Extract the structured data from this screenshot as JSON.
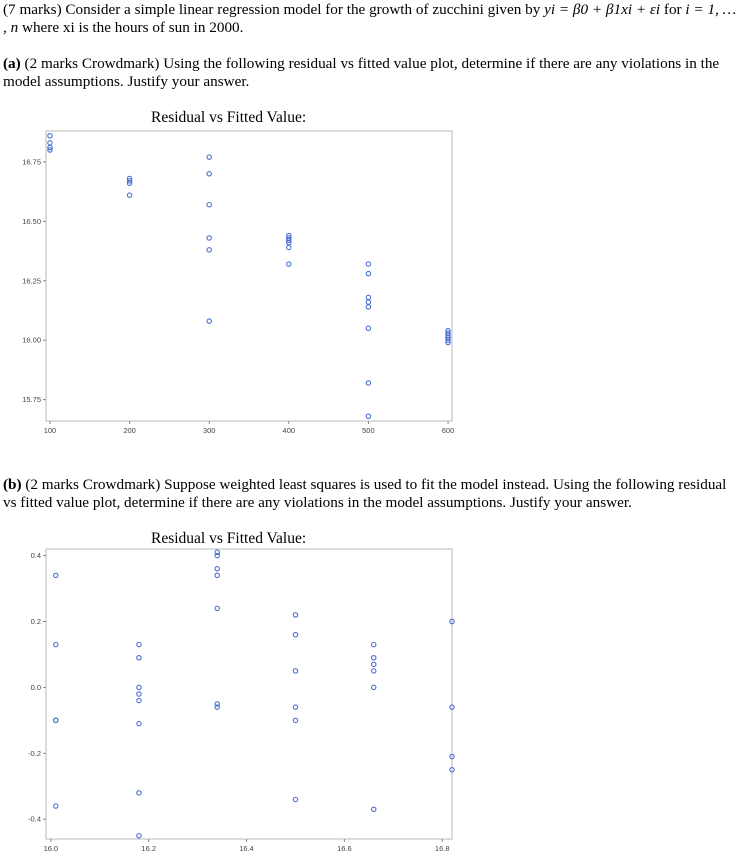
{
  "question": {
    "marks": "(7 marks)",
    "intro": "Consider a simple linear regression model for the growth of zucchini given by",
    "equation": "yi = β0 + β1xi + εi",
    "for": "for",
    "index_range": "i = 1, … , n",
    "x_desc": "where xi is the hours of sun in 2000."
  },
  "part_a": {
    "label": "(a)",
    "text": "(2 marks Crowdmark) Using the following residual vs fitted value plot, determine if there are any violations in the model assumptions. Justify your answer."
  },
  "part_b": {
    "label": "(b)",
    "text": "(2 marks Crowdmark) Suppose weighted least squares is used to fit the model instead. Using the following residual vs fitted value plot, determine if there are any violations in the model assumptions. Justify your answer."
  },
  "chart_data": [
    {
      "type": "scatter",
      "title": "Residual vs Fitted Value:",
      "xlim": [
        95,
        605
      ],
      "ylim": [
        15.66,
        16.88
      ],
      "xticks": [
        100,
        200,
        300,
        400,
        500,
        600
      ],
      "xtick_labels": [
        "100",
        "200",
        "300",
        "400",
        "500",
        "600"
      ],
      "yticks": [
        16.75,
        16.5,
        16.25,
        16.0,
        15.75
      ],
      "ytick_labels": [
        "16.75",
        "16.50",
        "16.25",
        "16.00",
        "15.75"
      ],
      "grid": false,
      "marker_color": "#4a6fd1",
      "points": [
        [
          100,
          16.86
        ],
        [
          100,
          16.83
        ],
        [
          100,
          16.81
        ],
        [
          100,
          16.8
        ],
        [
          200,
          16.68
        ],
        [
          200,
          16.67
        ],
        [
          200,
          16.66
        ],
        [
          200,
          16.61
        ],
        [
          300,
          16.77
        ],
        [
          300,
          16.7
        ],
        [
          300,
          16.57
        ],
        [
          300,
          16.43
        ],
        [
          300,
          16.38
        ],
        [
          300,
          16.08
        ],
        [
          400,
          16.44
        ],
        [
          400,
          16.43
        ],
        [
          400,
          16.42
        ],
        [
          400,
          16.41
        ],
        [
          400,
          16.39
        ],
        [
          400,
          16.32
        ],
        [
          500,
          16.32
        ],
        [
          500,
          16.28
        ],
        [
          500,
          16.18
        ],
        [
          500,
          16.16
        ],
        [
          500,
          16.14
        ],
        [
          500,
          16.05
        ],
        [
          500,
          15.82
        ],
        [
          500,
          15.68
        ],
        [
          600,
          16.04
        ],
        [
          600,
          16.03
        ],
        [
          600,
          16.02
        ],
        [
          600,
          16.01
        ],
        [
          600,
          16.0
        ],
        [
          600,
          15.99
        ]
      ]
    },
    {
      "type": "scatter",
      "title": "Residual vs Fitted Value:",
      "xlim": [
        15.99,
        16.82
      ],
      "ylim": [
        -0.46,
        0.42
      ],
      "xticks": [
        16.0,
        16.2,
        16.4,
        16.6,
        16.8
      ],
      "xtick_labels": [
        "16.0",
        "16.2",
        "16.4",
        "16.6",
        "16.8"
      ],
      "yticks": [
        0.4,
        0.2,
        0.0,
        -0.2,
        -0.4
      ],
      "ytick_labels": [
        "0.4",
        "0.2",
        "0.0",
        "-0.2",
        "-0.4"
      ],
      "grid": false,
      "marker_color": "#4a6fd1",
      "points": [
        [
          16.01,
          0.34
        ],
        [
          16.01,
          0.13
        ],
        [
          16.01,
          -0.1
        ],
        [
          16.01,
          -0.1
        ],
        [
          16.01,
          -0.36
        ],
        [
          16.18,
          0.13
        ],
        [
          16.18,
          0.09
        ],
        [
          16.18,
          0.0
        ],
        [
          16.18,
          -0.02
        ],
        [
          16.18,
          -0.04
        ],
        [
          16.18,
          -0.11
        ],
        [
          16.18,
          -0.32
        ],
        [
          16.18,
          -0.45
        ],
        [
          16.34,
          0.41
        ],
        [
          16.34,
          0.4
        ],
        [
          16.34,
          0.36
        ],
        [
          16.34,
          0.34
        ],
        [
          16.34,
          0.24
        ],
        [
          16.34,
          -0.05
        ],
        [
          16.34,
          -0.06
        ],
        [
          16.5,
          0.22
        ],
        [
          16.5,
          0.16
        ],
        [
          16.5,
          0.05
        ],
        [
          16.5,
          -0.06
        ],
        [
          16.5,
          -0.1
        ],
        [
          16.5,
          -0.34
        ],
        [
          16.66,
          0.13
        ],
        [
          16.66,
          0.09
        ],
        [
          16.66,
          0.07
        ],
        [
          16.66,
          0.05
        ],
        [
          16.66,
          0.0
        ],
        [
          16.66,
          -0.37
        ],
        [
          16.82,
          0.2
        ],
        [
          16.82,
          -0.06
        ],
        [
          16.82,
          -0.21
        ],
        [
          16.82,
          -0.25
        ]
      ]
    }
  ]
}
